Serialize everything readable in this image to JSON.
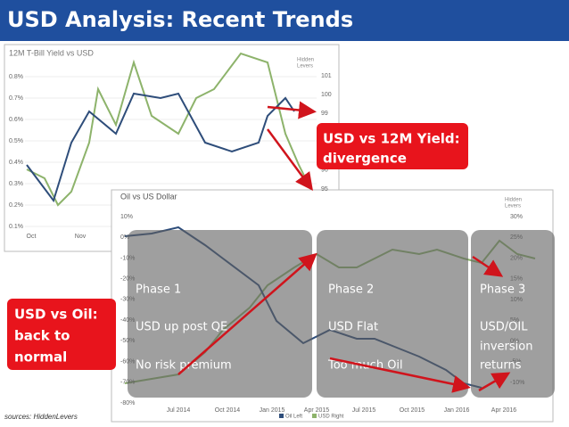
{
  "header": {
    "title": "USD Analysis: Recent Trends"
  },
  "charts": [
    {
      "title": "12M T-Bill Yield vs USD",
      "logo": [
        "Hidden",
        "Levers"
      ],
      "left_ticks": [
        "0.8%",
        "0.7%",
        "0.6%",
        "0.5%",
        "0.4%",
        "0.3%",
        "0.2%",
        "0.1%"
      ],
      "right_ticks": [
        "101",
        "100",
        "99",
        "98",
        "97",
        "96",
        "95"
      ],
      "x_labels": [
        "Oct",
        "Nov"
      ]
    },
    {
      "title": "Oil vs US Dollar",
      "logo": [
        "Hidden",
        "Levers"
      ],
      "left_ticks": [
        "10%",
        "0%",
        "-10%",
        "-20%",
        "-30%",
        "-40%",
        "-50%",
        "-60%",
        "-70%",
        "-80%"
      ],
      "right_ticks": [
        "30%",
        "25%",
        "20%",
        "15%",
        "10%",
        "5%",
        "0%",
        "-5%",
        "-10%"
      ],
      "x_labels": [
        "Jul 2014",
        "Oct 2014",
        "Jan 2015",
        "Apr 2015",
        "Jul 2015",
        "Oct 2015",
        "Jan 2016",
        "Apr 2016"
      ],
      "legend": [
        "Oil Left",
        "USD Right"
      ]
    }
  ],
  "callouts": [
    {
      "lines": [
        "USD vs 12M Yield:",
        "divergence"
      ]
    },
    {
      "lines": [
        "USD vs Oil:",
        "back to",
        "normal"
      ]
    }
  ],
  "phases": [
    {
      "title": "Phase 1",
      "lines": [
        "USD up post QE",
        "No risk premium"
      ]
    },
    {
      "title": "Phase 2",
      "lines": [
        "USD Flat",
        "Too much Oil"
      ]
    },
    {
      "title": "Phase 3",
      "lines": [
        "USD/OIL",
        "inversion",
        "returns"
      ]
    }
  ],
  "source": "sources: HiddenLevers"
}
